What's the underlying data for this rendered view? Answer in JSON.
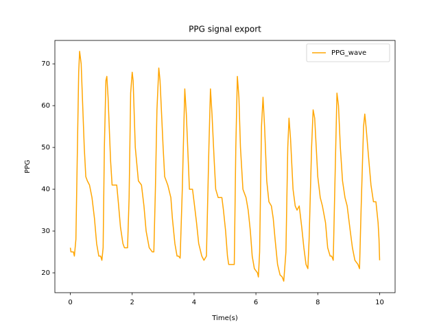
{
  "chart_data": {
    "type": "line",
    "title": "PPG signal export",
    "x_label": "Time(s)",
    "y_label": "PPG",
    "x": [
      0,
      0.02,
      0.1,
      0.13,
      0.18,
      0.22,
      0.27,
      0.3,
      0.35,
      0.4,
      0.45,
      0.5,
      0.55,
      0.62,
      0.7,
      0.78,
      0.85,
      0.92,
      0.98,
      1.02,
      1.06,
      1.1,
      1.15,
      1.18,
      1.22,
      1.3,
      1.35,
      1.5,
      1.55,
      1.62,
      1.7,
      1.75,
      1.85,
      1.9,
      1.95,
      2.0,
      2.03,
      2.1,
      2.2,
      2.3,
      2.38,
      2.45,
      2.55,
      2.65,
      2.7,
      2.75,
      2.8,
      2.86,
      2.9,
      2.95,
      3.0,
      3.05,
      3.15,
      3.25,
      3.3,
      3.38,
      3.45,
      3.5,
      3.55,
      3.62,
      3.7,
      3.75,
      3.8,
      3.85,
      3.95,
      4.0,
      4.08,
      4.15,
      4.25,
      4.32,
      4.4,
      4.48,
      4.53,
      4.58,
      4.65,
      4.7,
      4.78,
      4.9,
      4.95,
      5.02,
      5.08,
      5.12,
      5.3,
      5.35,
      5.4,
      5.45,
      5.5,
      5.58,
      5.68,
      5.75,
      5.82,
      5.88,
      5.95,
      6.05,
      6.08,
      6.12,
      6.18,
      6.23,
      6.28,
      6.35,
      6.42,
      6.5,
      6.56,
      6.62,
      6.7,
      6.78,
      6.85,
      6.9,
      6.97,
      7.03,
      7.07,
      7.12,
      7.2,
      7.27,
      7.33,
      7.4,
      7.48,
      7.55,
      7.62,
      7.68,
      7.72,
      7.8,
      7.85,
      7.9,
      7.95,
      8.0,
      8.08,
      8.15,
      8.25,
      8.32,
      8.4,
      8.45,
      8.5,
      8.55,
      8.62,
      8.67,
      8.73,
      8.8,
      8.88,
      8.95,
      9.05,
      9.12,
      9.2,
      9.3,
      9.35,
      9.4,
      9.48,
      9.52,
      9.56,
      9.65,
      9.72,
      9.8,
      9.88,
      9.95,
      9.98,
      10.0
    ],
    "series": [
      {
        "name": "PPG_wave",
        "color": "#ffa500",
        "values": [
          26,
          25,
          25,
          24,
          28,
          46,
          68,
          73,
          70,
          60,
          50,
          43,
          42,
          41,
          38,
          33,
          27,
          24,
          24,
          23,
          26,
          50,
          66,
          67,
          62,
          47,
          41,
          41,
          37,
          31,
          27,
          26,
          26,
          38,
          63,
          68,
          66,
          50,
          42,
          41,
          36,
          30,
          26,
          25,
          25,
          40,
          59,
          69,
          66,
          58,
          50,
          43,
          41,
          38,
          33,
          27,
          24,
          24,
          23.5,
          40,
          64,
          58,
          49,
          40,
          40,
          37,
          32,
          27,
          24,
          23,
          24,
          50,
          64,
          58,
          47,
          40,
          38,
          38,
          35,
          30,
          24,
          22,
          22,
          50,
          67,
          62,
          50,
          40,
          38,
          35,
          30,
          24,
          21,
          20,
          19,
          25,
          55,
          62,
          55,
          42,
          37,
          36,
          33,
          28,
          22,
          19.5,
          19,
          18,
          25,
          50,
          57,
          52,
          40,
          36,
          35,
          36,
          31,
          26,
          22,
          21,
          28,
          50,
          59,
          57,
          50,
          43,
          38,
          36,
          32,
          26,
          24,
          24,
          23,
          40,
          63,
          60,
          50,
          42,
          38,
          36,
          30,
          26,
          23,
          22,
          21,
          35,
          55,
          58,
          55,
          47,
          41,
          37,
          37,
          32,
          28,
          23
        ]
      }
    ],
    "xlim": [
      -0.5,
      10.5
    ],
    "ylim": [
      15.25,
      75.6
    ],
    "xticks": [
      0,
      2,
      4,
      6,
      8,
      10
    ],
    "yticks": [
      20,
      30,
      40,
      50,
      60,
      70
    ],
    "legend": "upper right",
    "grid": false
  }
}
